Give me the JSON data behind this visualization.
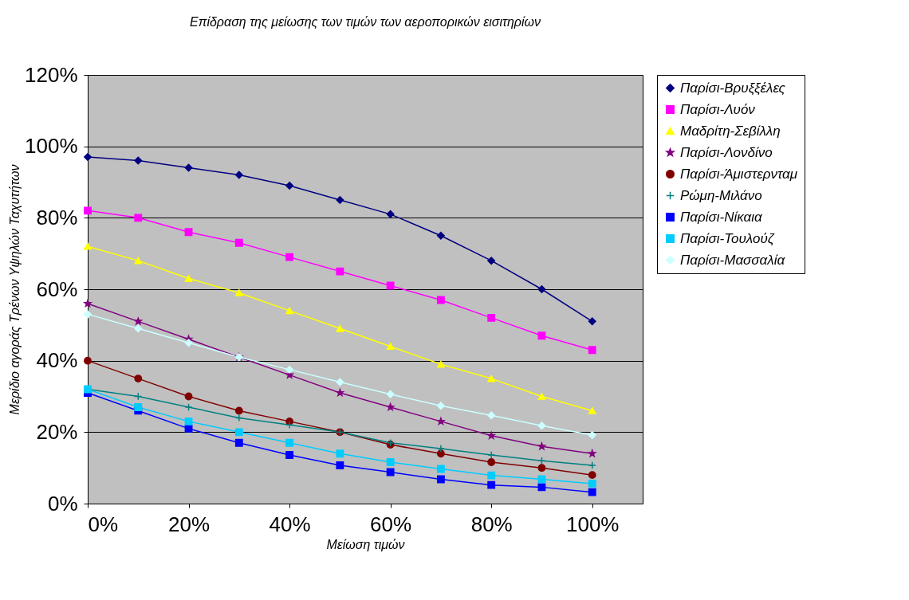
{
  "chart_data": {
    "type": "line",
    "title": "Επίδραση της μείωσης των τιμών των αεροπορικών εισιτηρίων",
    "xlabel": "Μείωση τιμών",
    "ylabel": "Μερίδιο αγοράς Τρένων Υψηλών Ταχυτήτων",
    "x": [
      0,
      10,
      20,
      30,
      40,
      50,
      60,
      70,
      80,
      90,
      100
    ],
    "xlim": [
      0,
      110
    ],
    "xticks": [
      {
        "value": 0,
        "label": "0%"
      },
      {
        "value": 20,
        "label": "20%"
      },
      {
        "value": 40,
        "label": "40%"
      },
      {
        "value": 60,
        "label": "60%"
      },
      {
        "value": 80,
        "label": "80%"
      },
      {
        "value": 100,
        "label": "100%"
      }
    ],
    "ylim": [
      0,
      120
    ],
    "yticks": [
      {
        "value": 0,
        "label": "0%"
      },
      {
        "value": 20,
        "label": "20%"
      },
      {
        "value": 40,
        "label": "40%"
      },
      {
        "value": 60,
        "label": "60%"
      },
      {
        "value": 80,
        "label": "80%"
      },
      {
        "value": 100,
        "label": "100%"
      },
      {
        "value": 120,
        "label": "120%"
      }
    ],
    "grid": "y",
    "legend": "right",
    "line_style": "solid",
    "series": [
      {
        "name": "Παρίσι-Βρυξξέλες",
        "color": "#000080",
        "marker": "diamond",
        "values": [
          97,
          96,
          94,
          92,
          89,
          85,
          81,
          75,
          68,
          60,
          51
        ]
      },
      {
        "name": "Παρίσι-Λυόν",
        "color": "#ff00ff",
        "marker": "square",
        "values": [
          82,
          80,
          76,
          73,
          69,
          65,
          61,
          57,
          52,
          47,
          43
        ]
      },
      {
        "name": "Μαδρίτη-Σεβίλλη",
        "color": "#ffff00",
        "marker": "triangle",
        "values": [
          72,
          68,
          63,
          59,
          54,
          49,
          44,
          39,
          35,
          30,
          26
        ]
      },
      {
        "name": "Παρίσι-Λονδίνο",
        "color": "#800080",
        "marker": "star",
        "values": [
          56,
          51,
          46,
          41,
          36,
          31,
          27,
          23,
          19,
          16,
          14
        ]
      },
      {
        "name": "Παρίσι-Άμιστερνταμ",
        "color": "#800000",
        "marker": "circle",
        "values": [
          40,
          35,
          30,
          26,
          23,
          20,
          16.5,
          14,
          11.6,
          10,
          8
        ]
      },
      {
        "name": "Ρώμη-Μιλάνο",
        "color": "#008080",
        "marker": "cross",
        "values": [
          32,
          30,
          27,
          24,
          22,
          20,
          17,
          15.4,
          13.6,
          12,
          10.7
        ]
      },
      {
        "name": "Παρίσι-Νίκαια",
        "color": "#0000ff",
        "marker": "square",
        "values": [
          31,
          26,
          21,
          17,
          13.6,
          10.7,
          8.8,
          6.8,
          5.2,
          4.6,
          3.2
        ]
      },
      {
        "name": "Παρίσι-Τουλούζ",
        "color": "#00ccff",
        "marker": "square",
        "values": [
          32,
          27,
          23,
          20,
          17,
          14,
          11.6,
          9.7,
          7.9,
          6.8,
          5.6
        ]
      },
      {
        "name": "Παρίσι-Μασσαλία",
        "color": "#ccffff",
        "marker": "diamond",
        "values": [
          53,
          49,
          45,
          41,
          37.5,
          34,
          30.6,
          27.4,
          24.7,
          21.8,
          19.2
        ]
      }
    ]
  }
}
